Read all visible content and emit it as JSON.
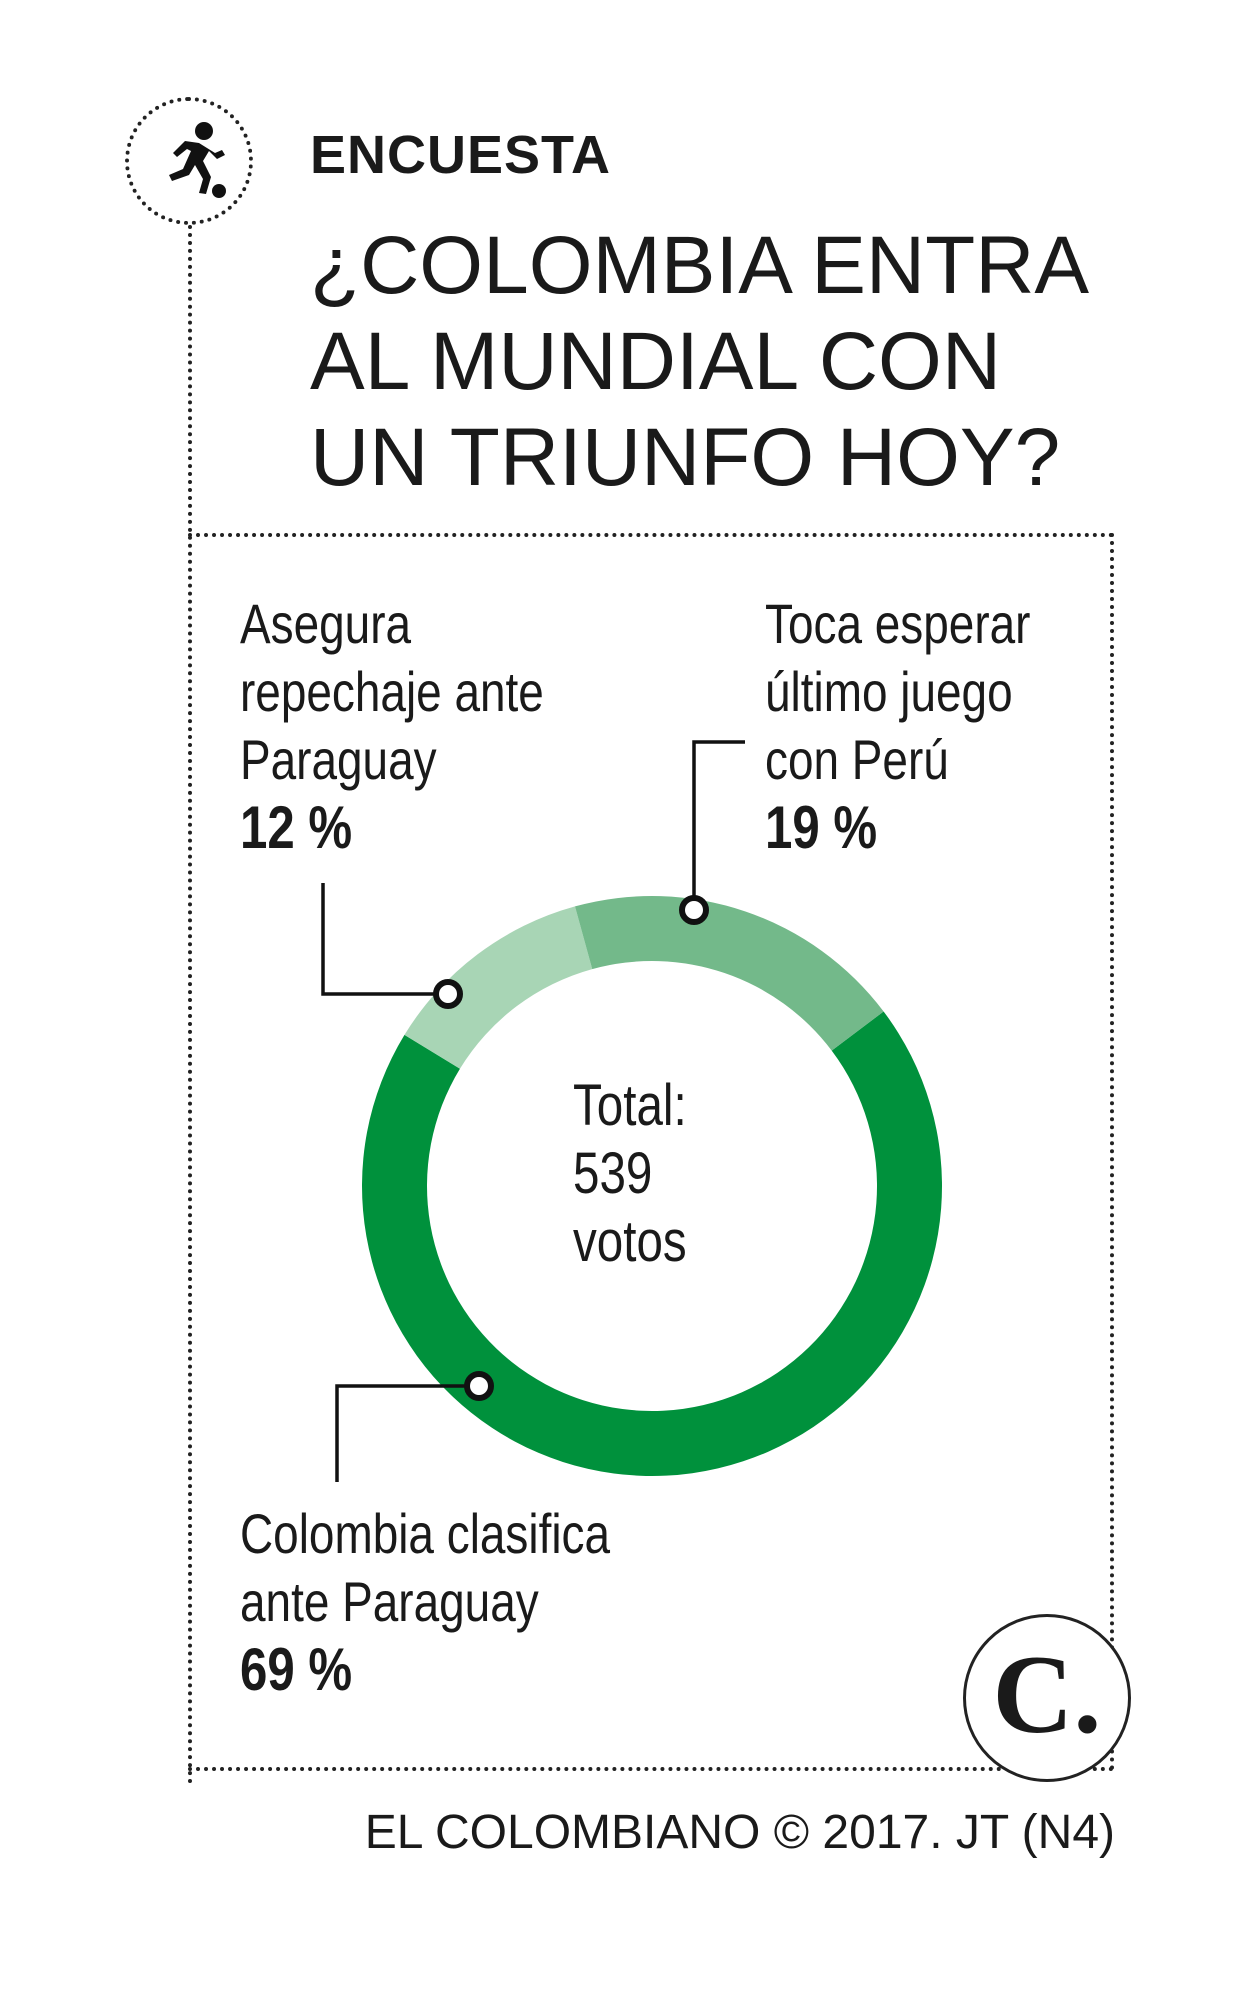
{
  "header": {
    "kicker": "ENCUESTA",
    "headline_lines": [
      "¿COLOMBIA ENTRA",
      "AL MUNDIAL CON",
      "UN TRIUNFO HOY?"
    ],
    "icon": "runner-with-ball-icon"
  },
  "chart_data": {
    "type": "pie",
    "title": "¿COLOMBIA ENTRA AL MUNDIAL CON UN TRIUNFO HOY?",
    "center_label_lines": [
      "Total:",
      "539",
      "votos"
    ],
    "slices": [
      {
        "label_lines": [
          "Colombia clasifica",
          "ante Paraguay"
        ],
        "value": 69,
        "value_label": "69 %",
        "color": "#00913c"
      },
      {
        "label_lines": [
          "Asegura",
          "repechaje ante",
          "Paraguay"
        ],
        "value": 12,
        "value_label": "12 %",
        "color": "#a8d5b5"
      },
      {
        "label_lines": [
          "Toca esperar",
          "último juego",
          "con Perú"
        ],
        "value": 19,
        "value_label": "19 %",
        "color": "#73b98a"
      }
    ],
    "donut": true
  },
  "footer": {
    "credit": "EL COLOMBIANO © 2017. JT (N4)"
  },
  "logo": {
    "letter": "C."
  }
}
